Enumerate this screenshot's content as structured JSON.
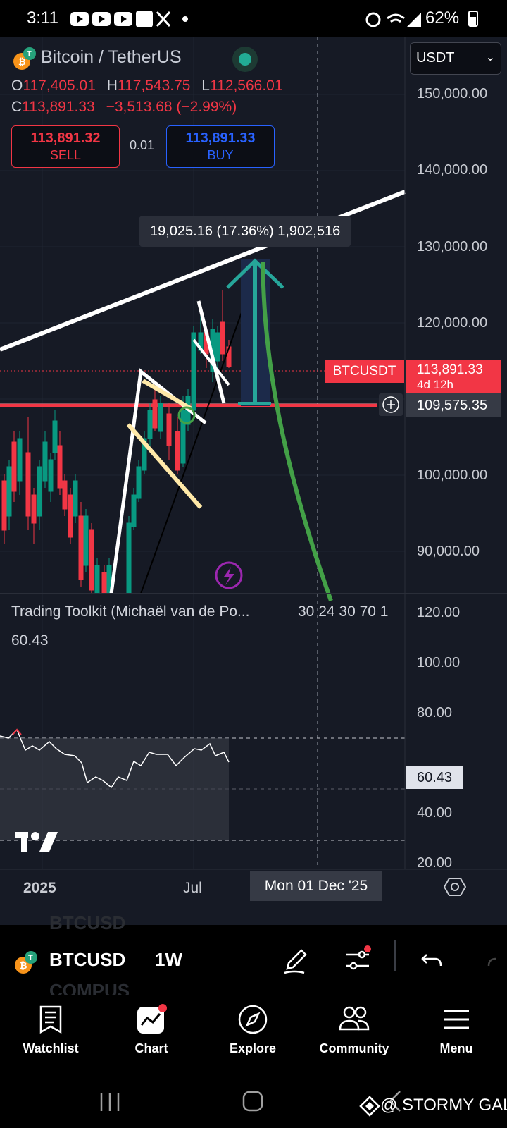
{
  "status_bar": {
    "time": "3:11",
    "battery": "62%",
    "icons": [
      "youtube-icon",
      "youtube-icon",
      "youtube-icon",
      "app-icon",
      "x-icon",
      "dot-icon",
      "alarm-icon",
      "wifi-icon",
      "signal-icon",
      "battery-icon"
    ]
  },
  "symbol": {
    "title": "Bitcoin / TetherUS",
    "currency": "USDT",
    "open_label": "O",
    "open": "117,405.01",
    "high_label": "H",
    "high": "117,543.75",
    "low_label": "L",
    "low": "112,566.01",
    "close_label": "C",
    "close": "113,891.33",
    "change": "−3,513.68 (−2.99%)",
    "sell_price": "113,891.32",
    "sell_label": "SELL",
    "spread": "0.01",
    "buy_price": "113,891.33",
    "buy_label": "BUY"
  },
  "price_axis": {
    "ticks": [
      "150,000.00",
      "140,000.00",
      "130,000.00",
      "120,000.00",
      "100,000.00",
      "90,000.00"
    ],
    "symbol_tag": "BTCUSDT",
    "last_price": "113,891.33",
    "countdown": "4d 12h",
    "crosshair_price": "109,575.35"
  },
  "measure_label": "19,025.16 (17.36%) 1,902,516",
  "indicator": {
    "title": "Trading Toolkit (Michaël van de Po...",
    "params": "30 24 30 70 1",
    "value": "60.43",
    "ticks": [
      "120.00",
      "100.00",
      "80.00",
      "40.00",
      "20.00"
    ],
    "value_tag": "60.43"
  },
  "time_axis": {
    "labels": [
      "2025",
      "Jul"
    ],
    "crosshair_date": "Mon 01 Dec '25"
  },
  "toolbar": {
    "ghost_top": "BTCUSD",
    "symbol": "BTCUSD",
    "interval": "1W",
    "ghost_bottom": "COMPUS"
  },
  "tabs": [
    {
      "label": "Watchlist",
      "icon": "watchlist-icon"
    },
    {
      "label": "Chart",
      "icon": "chart-icon"
    },
    {
      "label": "Explore",
      "icon": "compass-icon"
    },
    {
      "label": "Community",
      "icon": "community-icon"
    },
    {
      "label": "Menu",
      "icon": "menu-icon"
    }
  ],
  "watermark": "@ STORMY GAL",
  "colors": {
    "up": "#089981",
    "down": "#f23645",
    "buy": "#2962ff",
    "background": "#161a25",
    "green_curve": "#43a047"
  }
}
